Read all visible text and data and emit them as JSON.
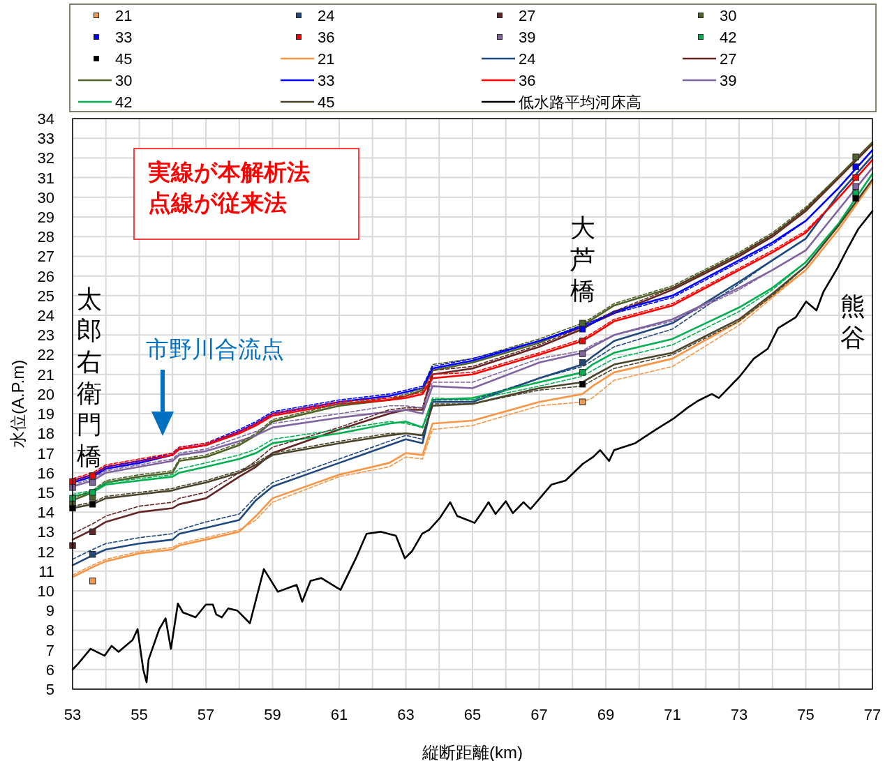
{
  "chart_data": {
    "type": "line",
    "xlabel": "縦断距離(km)",
    "ylabel": "水位(A.P.m)",
    "xlim": [
      53,
      77
    ],
    "ylim": [
      5,
      34
    ],
    "xticks": [
      53,
      {
        "value": 54,
        "label": null
      },
      55,
      {
        "value": 56,
        "label": null
      },
      57,
      {
        "value": 58,
        "label": null
      },
      59,
      {
        "value": 60,
        "label": null
      },
      61,
      {
        "value": 62,
        "label": null
      },
      63,
      {
        "value": 64,
        "label": null
      },
      65,
      {
        "value": 66,
        "label": null
      },
      67,
      {
        "value": 68,
        "label": null
      },
      69,
      {
        "value": 70,
        "label": null
      },
      71,
      {
        "value": 72,
        "label": null
      },
      73,
      {
        "value": 74,
        "label": null
      },
      75,
      {
        "value": 76,
        "label": null
      },
      77
    ],
    "yticks": [
      5,
      6,
      7,
      8,
      9,
      10,
      11,
      12,
      13,
      14,
      15,
      16,
      17,
      18,
      19,
      20,
      21,
      22,
      23,
      24,
      25,
      26,
      27,
      28,
      29,
      30,
      31,
      32,
      33,
      34
    ],
    "grid": true,
    "legend": "top",
    "annotations": [
      "実線が本解析法",
      "点線が従来法",
      "太郎右衛門橋",
      "市野川合流点",
      "大芦橋",
      "熊谷"
    ],
    "series": [
      {
        "name": "21",
        "type": "scatter",
        "marker": "square",
        "color": "#f79646",
        "x": [
          53.6,
          68.3
        ],
        "values": [
          10.5,
          19.6
        ]
      },
      {
        "name": "24",
        "type": "scatter",
        "marker": "square",
        "color": "#1f497d",
        "x": [
          53.6,
          68.3
        ],
        "values": [
          11.85,
          21.6
        ]
      },
      {
        "name": "27",
        "type": "scatter",
        "marker": "square",
        "color": "#632523",
        "x": [
          53,
          53.6
        ],
        "values": [
          12.3,
          13.0
        ]
      },
      {
        "name": "30",
        "type": "scatter",
        "marker": "square",
        "color": "#4f6228",
        "x": [
          53,
          53.6,
          68.3,
          76.5
        ],
        "values": [
          14.4,
          14.75,
          23.6,
          32.05
        ]
      },
      {
        "name": "33",
        "type": "scatter",
        "marker": "square",
        "color": "#0000ff",
        "x": [
          68.3,
          76.5
        ],
        "values": [
          23.3,
          31.55
        ]
      },
      {
        "name": "36",
        "type": "scatter",
        "marker": "square",
        "color": "#ff0000",
        "x": [
          53,
          53.6,
          68.3,
          76.5
        ],
        "values": [
          15.55,
          15.85,
          22.7,
          31.0
        ]
      },
      {
        "name": "39",
        "type": "scatter",
        "marker": "square",
        "color": "#8064a2",
        "x": [
          53,
          53.6,
          68.3,
          76.5
        ],
        "values": [
          15.25,
          15.5,
          22.05,
          30.55
        ]
      },
      {
        "name": "42",
        "type": "scatter",
        "marker": "square",
        "color": "#00b050",
        "x": [
          53,
          53.6,
          68.3,
          76.5
        ],
        "values": [
          14.7,
          15.0,
          21.1,
          30.2
        ]
      },
      {
        "name": "45",
        "type": "scatter",
        "marker": "square",
        "color": "#000000",
        "x": [
          53,
          53.6,
          68.3,
          76.5
        ],
        "values": [
          14.2,
          14.4,
          20.5,
          29.95
        ]
      },
      {
        "name": "21",
        "line_style": "solid",
        "color": "#f79646",
        "x": [
          53,
          53.6,
          54,
          55,
          56,
          56.2,
          57,
          58,
          58.5,
          59,
          61,
          62.5,
          63,
          63.5,
          63.8,
          65,
          67,
          68.3,
          68.6,
          69.25,
          71,
          73,
          74,
          75,
          76,
          77
        ],
        "values": [
          10.7,
          11.2,
          11.5,
          11.9,
          12.1,
          12.3,
          12.6,
          13.0,
          13.8,
          14.7,
          15.9,
          16.5,
          17.0,
          16.9,
          18.5,
          18.65,
          19.6,
          20.0,
          20.4,
          21.1,
          21.8,
          23.7,
          25.0,
          26.3,
          28.4,
          30.8
        ]
      },
      {
        "name": "24",
        "line_style": "solid",
        "color": "#1f497d",
        "x": [
          53,
          53.6,
          54,
          55,
          56,
          56.2,
          57,
          58,
          58.5,
          59,
          61,
          62.5,
          63,
          63.5,
          63.8,
          65,
          67,
          68.3,
          68.6,
          69.25,
          71,
          73,
          74,
          75,
          76,
          77
        ],
        "values": [
          11.3,
          11.8,
          12.1,
          12.4,
          12.6,
          12.9,
          13.2,
          13.6,
          14.6,
          15.3,
          16.5,
          17.4,
          17.7,
          17.5,
          19.6,
          19.6,
          20.8,
          21.5,
          21.9,
          22.7,
          23.6,
          25.7,
          26.8,
          27.9,
          30.2,
          32.1
        ]
      },
      {
        "name": "27",
        "line_style": "solid",
        "color": "#632523",
        "x": [
          53,
          53.6,
          54,
          55,
          56,
          56.2,
          57,
          58,
          58.5,
          59,
          61,
          62.5,
          63,
          63.5,
          63.8,
          65,
          67,
          68.3,
          68.6,
          69.25,
          71,
          73,
          74,
          75,
          76,
          77
        ],
        "values": [
          12.6,
          13.1,
          13.5,
          14.0,
          14.2,
          14.4,
          14.7,
          15.8,
          16.3,
          17.0,
          18.2,
          19.0,
          19.2,
          19.2,
          21.0,
          21.3,
          22.4,
          23.3,
          23.6,
          24.1,
          25.3,
          27.0,
          28.0,
          29.3,
          31.0,
          32.7
        ]
      },
      {
        "name": "30",
        "line_style": "solid",
        "color": "#4f6228",
        "x": [
          53,
          53.6,
          54,
          55,
          56,
          56.2,
          57,
          58,
          58.5,
          59,
          61,
          62.5,
          63,
          63.5,
          63.8,
          65,
          67,
          68.3,
          68.6,
          69.25,
          71,
          73,
          74,
          75,
          76,
          77
        ],
        "values": [
          14.6,
          15.0,
          15.5,
          15.8,
          16.0,
          16.6,
          16.8,
          17.4,
          17.9,
          18.6,
          19.4,
          19.7,
          19.9,
          20.2,
          21.2,
          21.6,
          22.6,
          23.5,
          23.8,
          24.5,
          25.4,
          27.1,
          28.1,
          29.4,
          31.1,
          32.8
        ]
      },
      {
        "name": "33",
        "line_style": "solid",
        "color": "#0000ff",
        "x": [
          53,
          53.6,
          54,
          55,
          56,
          56.2,
          57,
          58,
          58.5,
          59,
          61,
          62.5,
          63,
          63.5,
          63.8,
          65,
          67,
          68.3,
          68.6,
          69.25,
          71,
          73,
          74,
          75,
          76,
          77
        ],
        "values": [
          15.5,
          15.8,
          16.2,
          16.5,
          16.9,
          17.2,
          17.4,
          18.1,
          18.5,
          19.0,
          19.6,
          19.9,
          20.1,
          20.3,
          21.3,
          21.7,
          22.7,
          23.4,
          23.6,
          24.2,
          25.0,
          26.8,
          27.7,
          28.8,
          30.5,
          32.4
        ]
      },
      {
        "name": "36",
        "line_style": "solid",
        "color": "#ff0000",
        "x": [
          53,
          53.6,
          54,
          55,
          56,
          56.2,
          57,
          58,
          58.5,
          59,
          61,
          62.5,
          63,
          63.5,
          63.8,
          65,
          67,
          68.3,
          68.6,
          69.25,
          71,
          73,
          74,
          75,
          76,
          77
        ],
        "values": [
          15.6,
          15.9,
          16.3,
          16.6,
          16.9,
          17.2,
          17.4,
          18.0,
          18.4,
          18.9,
          19.5,
          19.7,
          19.8,
          20.0,
          20.8,
          21.0,
          22.0,
          22.7,
          23.0,
          23.7,
          24.5,
          26.3,
          27.2,
          28.2,
          30.0,
          31.9
        ]
      },
      {
        "name": "39",
        "line_style": "solid",
        "color": "#8064a2",
        "x": [
          53,
          53.6,
          54,
          55,
          56,
          56.2,
          57,
          58,
          58.5,
          59,
          61,
          62.5,
          63,
          63.5,
          63.8,
          65,
          67,
          68.3,
          68.6,
          69.25,
          71,
          73,
          74,
          75,
          76,
          77
        ],
        "values": [
          15.3,
          15.6,
          16.0,
          16.3,
          16.6,
          16.9,
          17.1,
          17.6,
          17.9,
          18.3,
          18.8,
          19.1,
          19.2,
          19.0,
          20.4,
          20.3,
          21.6,
          22.1,
          22.4,
          23.0,
          23.8,
          25.4,
          26.3,
          27.3,
          29.4,
          31.5
        ]
      },
      {
        "name": "42",
        "line_style": "solid",
        "color": "#00b050",
        "x": [
          53,
          53.6,
          54,
          55,
          56,
          56.2,
          57,
          58,
          58.5,
          59,
          61,
          62.5,
          63,
          63.5,
          63.8,
          65,
          67,
          68.3,
          68.6,
          69.25,
          71,
          73,
          74,
          75,
          76,
          77
        ],
        "values": [
          14.8,
          15.0,
          15.4,
          15.6,
          15.8,
          16.0,
          16.3,
          16.7,
          17.0,
          17.5,
          18.0,
          18.5,
          18.6,
          18.3,
          19.7,
          19.8,
          20.6,
          21.1,
          21.5,
          22.1,
          22.8,
          24.4,
          25.4,
          26.7,
          28.7,
          31.2
        ]
      },
      {
        "name": "45",
        "line_style": "solid",
        "color": "#4a452a",
        "x": [
          53,
          53.6,
          54,
          55,
          56,
          56.2,
          57,
          58,
          58.5,
          59,
          61,
          62.5,
          63,
          63.5,
          63.8,
          65,
          67,
          68.3,
          68.6,
          69.25,
          71,
          73,
          74,
          75,
          76,
          77
        ],
        "values": [
          14.2,
          14.4,
          14.7,
          14.9,
          15.1,
          15.2,
          15.5,
          16.0,
          16.4,
          16.9,
          17.5,
          17.9,
          18.0,
          17.9,
          19.4,
          19.5,
          20.3,
          20.6,
          20.9,
          21.5,
          22.1,
          23.8,
          25.1,
          26.5,
          28.6,
          30.9
        ]
      },
      {
        "name": "低水路平均河床高",
        "line_style": "solid",
        "color": "#000000",
        "x": [
          53,
          53.17,
          53.54,
          53.96,
          54.17,
          54.38,
          54.8,
          54.95,
          55.12,
          55.22,
          55.28,
          55.6,
          55.79,
          55.95,
          56.16,
          56.31,
          56.69,
          57.0,
          57.21,
          57.31,
          57.48,
          57.67,
          57.94,
          58.32,
          58.74,
          59.16,
          59.72,
          59.89,
          60.14,
          60.46,
          61.04,
          61.5,
          61.82,
          62.24,
          62.7,
          62.97,
          63.18,
          63.49,
          63.7,
          64.02,
          64.33,
          64.54,
          64.85,
          65.06,
          65.27,
          65.48,
          65.69,
          66.0,
          66.21,
          66.53,
          66.74,
          67.37,
          67.79,
          68.31,
          68.62,
          68.83,
          69.1,
          69.25,
          69.88,
          70.51,
          71.03,
          71.45,
          71.76,
          72.18,
          72.39,
          73.02,
          73.44,
          73.86,
          74.17,
          74.7,
          75.01,
          75.32,
          75.53,
          75.95,
          76.27,
          76.58,
          77
        ],
        "values": [
          6.0,
          6.3,
          7.05,
          6.7,
          7.2,
          6.9,
          7.5,
          8.05,
          6.0,
          5.35,
          6.5,
          8.05,
          8.6,
          7.05,
          9.35,
          8.9,
          8.65,
          9.3,
          9.3,
          8.8,
          8.65,
          9.1,
          9.0,
          8.35,
          11.1,
          9.95,
          10.3,
          9.45,
          10.5,
          10.65,
          10.05,
          11.65,
          12.9,
          13.0,
          12.8,
          11.65,
          12.0,
          12.9,
          13.1,
          13.7,
          14.5,
          13.8,
          13.6,
          13.45,
          13.95,
          14.5,
          13.9,
          14.55,
          13.95,
          14.5,
          14.15,
          15.4,
          15.6,
          16.45,
          16.8,
          17.15,
          16.6,
          17.15,
          17.5,
          18.2,
          18.75,
          19.3,
          19.65,
          20.0,
          19.8,
          20.9,
          21.8,
          22.3,
          23.35,
          23.9,
          24.7,
          24.25,
          25.2,
          26.4,
          27.45,
          28.4,
          29.3
        ]
      },
      {
        "line_style": "dashed",
        "color": "#f79646",
        "x": [
          53,
          53.6,
          54,
          55,
          56,
          56.2,
          57,
          58,
          58.5,
          59,
          61,
          62.5,
          63,
          63.5,
          63.8,
          65,
          67,
          68.3,
          68.6,
          69.25,
          71,
          73,
          74,
          75,
          76,
          77
        ],
        "values": [
          10.8,
          11.3,
          11.6,
          12.0,
          12.2,
          12.4,
          12.7,
          13.1,
          13.6,
          14.5,
          15.8,
          16.3,
          16.8,
          16.7,
          18.2,
          18.4,
          19.4,
          19.6,
          19.8,
          20.7,
          21.4,
          23.5,
          24.9,
          26.3,
          28.4,
          30.8
        ]
      },
      {
        "line_style": "dashed",
        "color": "#1f497d",
        "x": [
          53,
          53.6,
          54,
          55,
          56,
          56.2,
          57,
          58,
          58.5,
          59,
          61,
          62.5,
          63,
          63.5,
          63.8,
          65,
          67,
          68.3,
          68.6,
          69.25,
          71,
          73,
          74,
          75,
          76,
          77
        ],
        "values": [
          11.6,
          12.1,
          12.4,
          12.7,
          12.9,
          13.1,
          13.5,
          13.9,
          14.8,
          15.5,
          16.7,
          17.6,
          17.9,
          17.7,
          19.7,
          19.7,
          20.8,
          21.4,
          21.7,
          22.4,
          23.3,
          25.6,
          26.8,
          27.9,
          30.2,
          32.1
        ]
      },
      {
        "line_style": "dashed",
        "color": "#632523",
        "x": [
          53,
          53.6,
          54,
          55,
          56,
          56.2,
          57,
          58,
          58.5,
          59,
          61,
          62.5,
          63,
          63.5,
          63.8,
          65,
          67,
          68.3,
          68.6,
          69.25,
          71,
          73,
          74,
          75,
          76,
          77
        ],
        "values": [
          12.9,
          13.4,
          13.8,
          14.3,
          14.5,
          14.7,
          15.0,
          16.0,
          16.6,
          17.3,
          18.3,
          19.2,
          19.3,
          19.3,
          21.2,
          21.4,
          22.5,
          23.4,
          23.7,
          24.2,
          25.4,
          27.1,
          28.1,
          29.4,
          31.1,
          32.8
        ]
      },
      {
        "line_style": "dashed",
        "color": "#4f6228",
        "x": [
          53,
          53.6,
          54,
          55,
          56,
          56.2,
          57,
          58,
          58.5,
          59,
          61,
          62.5,
          63,
          63.5,
          63.8,
          65,
          67,
          68.3,
          68.6,
          69.25,
          71,
          73,
          74,
          75,
          76,
          77
        ],
        "values": [
          14.7,
          15.1,
          15.6,
          15.9,
          16.1,
          16.7,
          16.9,
          17.5,
          18.0,
          18.7,
          19.5,
          19.8,
          20.0,
          20.3,
          21.5,
          21.8,
          22.8,
          23.6,
          23.9,
          24.6,
          25.5,
          27.2,
          28.2,
          29.5,
          31.1,
          32.8
        ]
      },
      {
        "line_style": "dashed",
        "color": "#0000ff",
        "x": [
          53,
          53.6,
          54,
          55,
          56,
          56.2,
          57,
          58,
          58.5,
          59,
          61,
          62.5,
          63,
          63.5,
          63.8,
          65,
          67,
          68.3,
          68.6,
          69.25,
          71,
          73,
          74,
          75,
          76,
          77
        ],
        "values": [
          15.6,
          15.9,
          16.3,
          16.6,
          17.0,
          17.3,
          17.5,
          18.2,
          18.6,
          19.1,
          19.7,
          20.0,
          20.2,
          20.4,
          21.4,
          21.8,
          22.7,
          23.5,
          23.7,
          24.1,
          24.9,
          26.7,
          27.6,
          28.8,
          30.5,
          32.4
        ]
      },
      {
        "line_style": "dashed",
        "color": "#ff0000",
        "x": [
          53,
          53.6,
          54,
          55,
          56,
          56.2,
          57,
          58,
          58.5,
          59,
          61,
          62.5,
          63,
          63.5,
          63.8,
          65,
          67,
          68.3,
          68.6,
          69.25,
          71,
          73,
          74,
          75,
          76,
          77
        ],
        "values": [
          15.7,
          16.0,
          16.4,
          16.7,
          17.0,
          17.3,
          17.5,
          18.1,
          18.5,
          19.0,
          19.6,
          19.8,
          19.9,
          20.1,
          21.0,
          21.1,
          22.1,
          22.8,
          23.1,
          23.8,
          24.6,
          26.4,
          27.3,
          28.3,
          30.0,
          31.9
        ]
      },
      {
        "line_style": "dashed",
        "color": "#8064a2",
        "x": [
          53,
          53.6,
          54,
          55,
          56,
          56.2,
          57,
          58,
          58.5,
          59,
          61,
          62.5,
          63,
          63.5,
          63.8,
          65,
          67,
          68.3,
          68.6,
          69.25,
          71,
          73,
          74,
          75,
          76,
          77
        ],
        "values": [
          15.4,
          15.7,
          16.1,
          16.4,
          16.7,
          17.0,
          17.2,
          17.8,
          18.1,
          18.5,
          19.0,
          19.4,
          19.4,
          19.3,
          20.6,
          20.6,
          21.8,
          22.2,
          22.5,
          23.0,
          23.7,
          25.3,
          26.3,
          27.3,
          29.4,
          31.5
        ]
      },
      {
        "line_style": "dashed",
        "color": "#00b050",
        "x": [
          53,
          53.6,
          54,
          55,
          56,
          56.2,
          57,
          58,
          58.5,
          59,
          61,
          62.5,
          63,
          63.5,
          63.8,
          65,
          67,
          68.3,
          68.6,
          69.25,
          71,
          73,
          74,
          75,
          76,
          77
        ],
        "values": [
          14.9,
          15.1,
          15.5,
          15.7,
          15.9,
          16.2,
          16.5,
          16.9,
          17.2,
          17.7,
          18.2,
          18.6,
          18.5,
          18.3,
          19.8,
          19.7,
          20.4,
          20.9,
          21.2,
          21.8,
          22.5,
          24.2,
          25.3,
          26.7,
          28.7,
          31.2
        ]
      },
      {
        "line_style": "dashed",
        "color": "#4a452a",
        "x": [
          53,
          53.6,
          54,
          55,
          56,
          56.2,
          57,
          58,
          58.5,
          59,
          61,
          62.5,
          63,
          63.5,
          63.8,
          65,
          67,
          68.3,
          68.6,
          69.25,
          71,
          73,
          74,
          75,
          76,
          77
        ],
        "values": [
          14.3,
          14.5,
          14.8,
          15.0,
          15.2,
          15.3,
          15.6,
          16.1,
          16.5,
          17.0,
          17.6,
          18.0,
          18.0,
          17.9,
          19.5,
          19.5,
          20.2,
          20.4,
          20.7,
          21.3,
          22.0,
          23.7,
          25.0,
          26.5,
          28.6,
          30.9
        ]
      }
    ]
  }
}
